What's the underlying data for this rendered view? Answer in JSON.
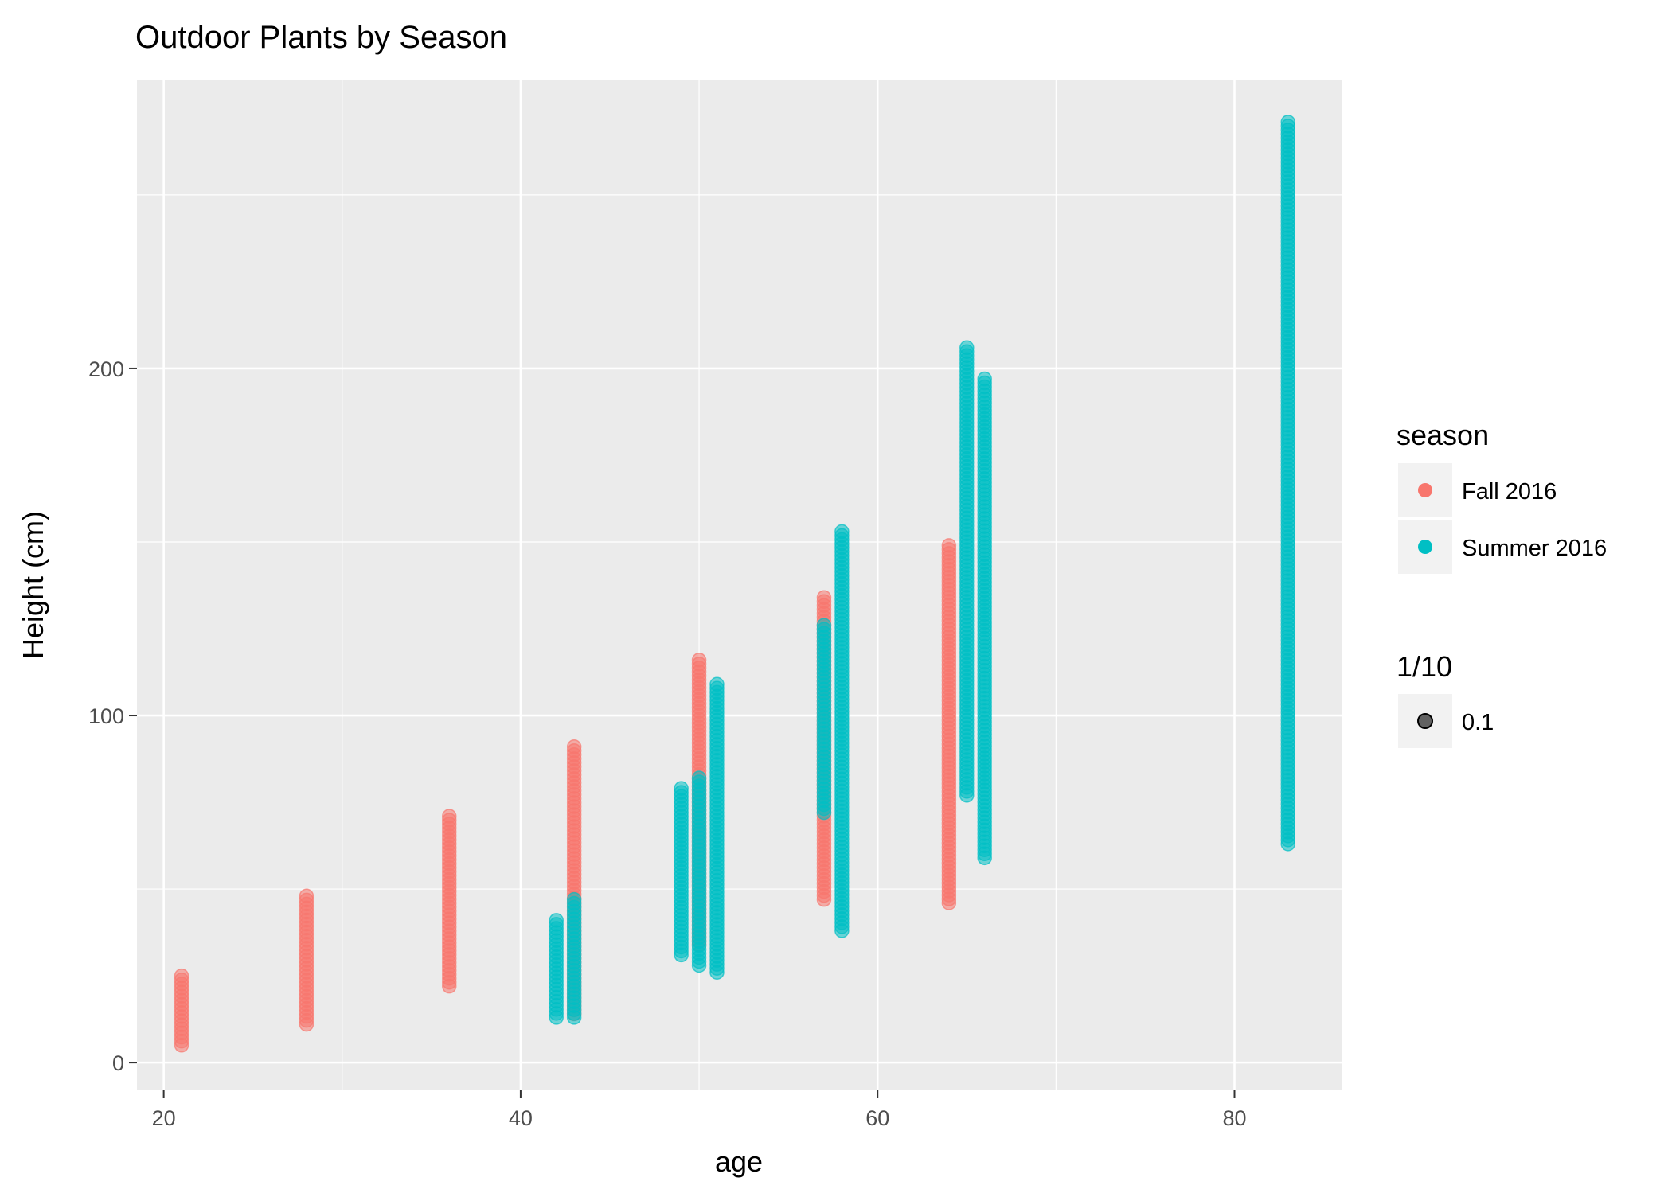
{
  "chart_data": {
    "type": "scatter",
    "title": "Outdoor Plants by Season",
    "xlabel": "age",
    "ylabel": "Height (cm)",
    "xlim": [
      18.5,
      86
    ],
    "ylim": [
      -8,
      283
    ],
    "x_ticks": [
      "20",
      "40",
      "60",
      "80"
    ],
    "x_tick_values": [
      20,
      40,
      60,
      80
    ],
    "y_ticks": [
      "0",
      "100",
      "200"
    ],
    "y_tick_values": [
      0,
      100,
      200
    ],
    "grid": true,
    "legend_placement": "right",
    "legend": {
      "color_title": "season",
      "alpha_title": "1/10",
      "alpha_label": "0.1"
    },
    "series": [
      {
        "name": "Fall 2016",
        "color": "#F8766D",
        "groups": [
          {
            "x": 21,
            "y_min": 5,
            "y_max": 25
          },
          {
            "x": 28,
            "y_min": 11,
            "y_max": 48
          },
          {
            "x": 36,
            "y_min": 22,
            "y_max": 71
          },
          {
            "x": 43,
            "y_min": 14,
            "y_max": 91
          },
          {
            "x": 50,
            "y_min": 34,
            "y_max": 116
          },
          {
            "x": 57,
            "y_min": 47,
            "y_max": 134
          },
          {
            "x": 64,
            "y_min": 46,
            "y_max": 149
          }
        ]
      },
      {
        "name": "Summer 2016",
        "color": "#00BFC4",
        "groups": [
          {
            "x": 42,
            "y_min": 13,
            "y_max": 41
          },
          {
            "x": 43,
            "y_min": 13,
            "y_max": 47
          },
          {
            "x": 49,
            "y_min": 31,
            "y_max": 79
          },
          {
            "x": 50,
            "y_min": 28,
            "y_max": 82
          },
          {
            "x": 51,
            "y_min": 26,
            "y_max": 109
          },
          {
            "x": 57,
            "y_min": 72,
            "y_max": 126
          },
          {
            "x": 58,
            "y_min": 38,
            "y_max": 153
          },
          {
            "x": 65,
            "y_min": 77,
            "y_max": 206
          },
          {
            "x": 66,
            "y_min": 59,
            "y_max": 197
          },
          {
            "x": 83,
            "y_min": 63,
            "y_max": 271
          }
        ]
      }
    ]
  }
}
